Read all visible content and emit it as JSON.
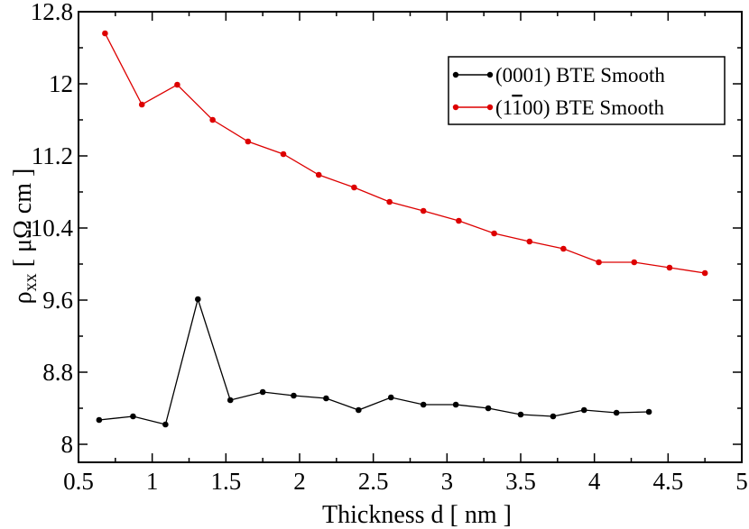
{
  "chart_data": {
    "type": "line",
    "title": "",
    "xlabel": "Thickness d [ nm ]",
    "ylabel_main": "ρ",
    "ylabel_sub": "xx",
    "ylabel_unit": " [ μΩ cm ]",
    "xlim": [
      0.5,
      5
    ],
    "ylim": [
      7.8,
      12.8
    ],
    "xticks": [
      0.5,
      1,
      1.5,
      2,
      2.5,
      3,
      3.5,
      4,
      4.5,
      5
    ],
    "xtick_labels": [
      "0.5",
      "1",
      "1.5",
      "2",
      "2.5",
      "3",
      "3.5",
      "4",
      "4.5",
      "5"
    ],
    "yticks": [
      8,
      8.8,
      9.6,
      10.4,
      11.2,
      12,
      12.8
    ],
    "ytick_labels": [
      "8",
      "8.8",
      "9.6",
      "10.4",
      "11.2",
      "12",
      "12.8"
    ],
    "grid": false,
    "legend_position": "top-right",
    "series": [
      {
        "name": "(0001) BTE Smooth",
        "color": "#000000",
        "x": [
          0.64,
          0.87,
          1.09,
          1.31,
          1.53,
          1.75,
          1.96,
          2.18,
          2.4,
          2.62,
          2.84,
          3.06,
          3.28,
          3.5,
          3.72,
          3.93,
          4.15,
          4.37
        ],
        "y": [
          8.27,
          8.31,
          8.22,
          9.61,
          8.49,
          8.58,
          8.54,
          8.51,
          8.38,
          8.52,
          8.44,
          8.44,
          8.4,
          8.33,
          8.31,
          8.38,
          8.35,
          8.36
        ]
      },
      {
        "name": "(1̄100) BTE Smooth",
        "legend_prefix": "(1",
        "legend_overlined": "1",
        "legend_suffix": "00) BTE Smooth",
        "color": "#dd0000",
        "x": [
          0.68,
          0.93,
          1.17,
          1.41,
          1.65,
          1.89,
          2.13,
          2.37,
          2.61,
          2.84,
          3.08,
          3.32,
          3.56,
          3.79,
          4.03,
          4.27,
          4.51,
          4.75
        ],
        "y": [
          12.56,
          11.77,
          11.99,
          11.6,
          11.36,
          11.22,
          10.99,
          10.85,
          10.69,
          10.59,
          10.48,
          10.34,
          10.25,
          10.17,
          10.02,
          10.02,
          9.96,
          9.9
        ]
      }
    ]
  }
}
